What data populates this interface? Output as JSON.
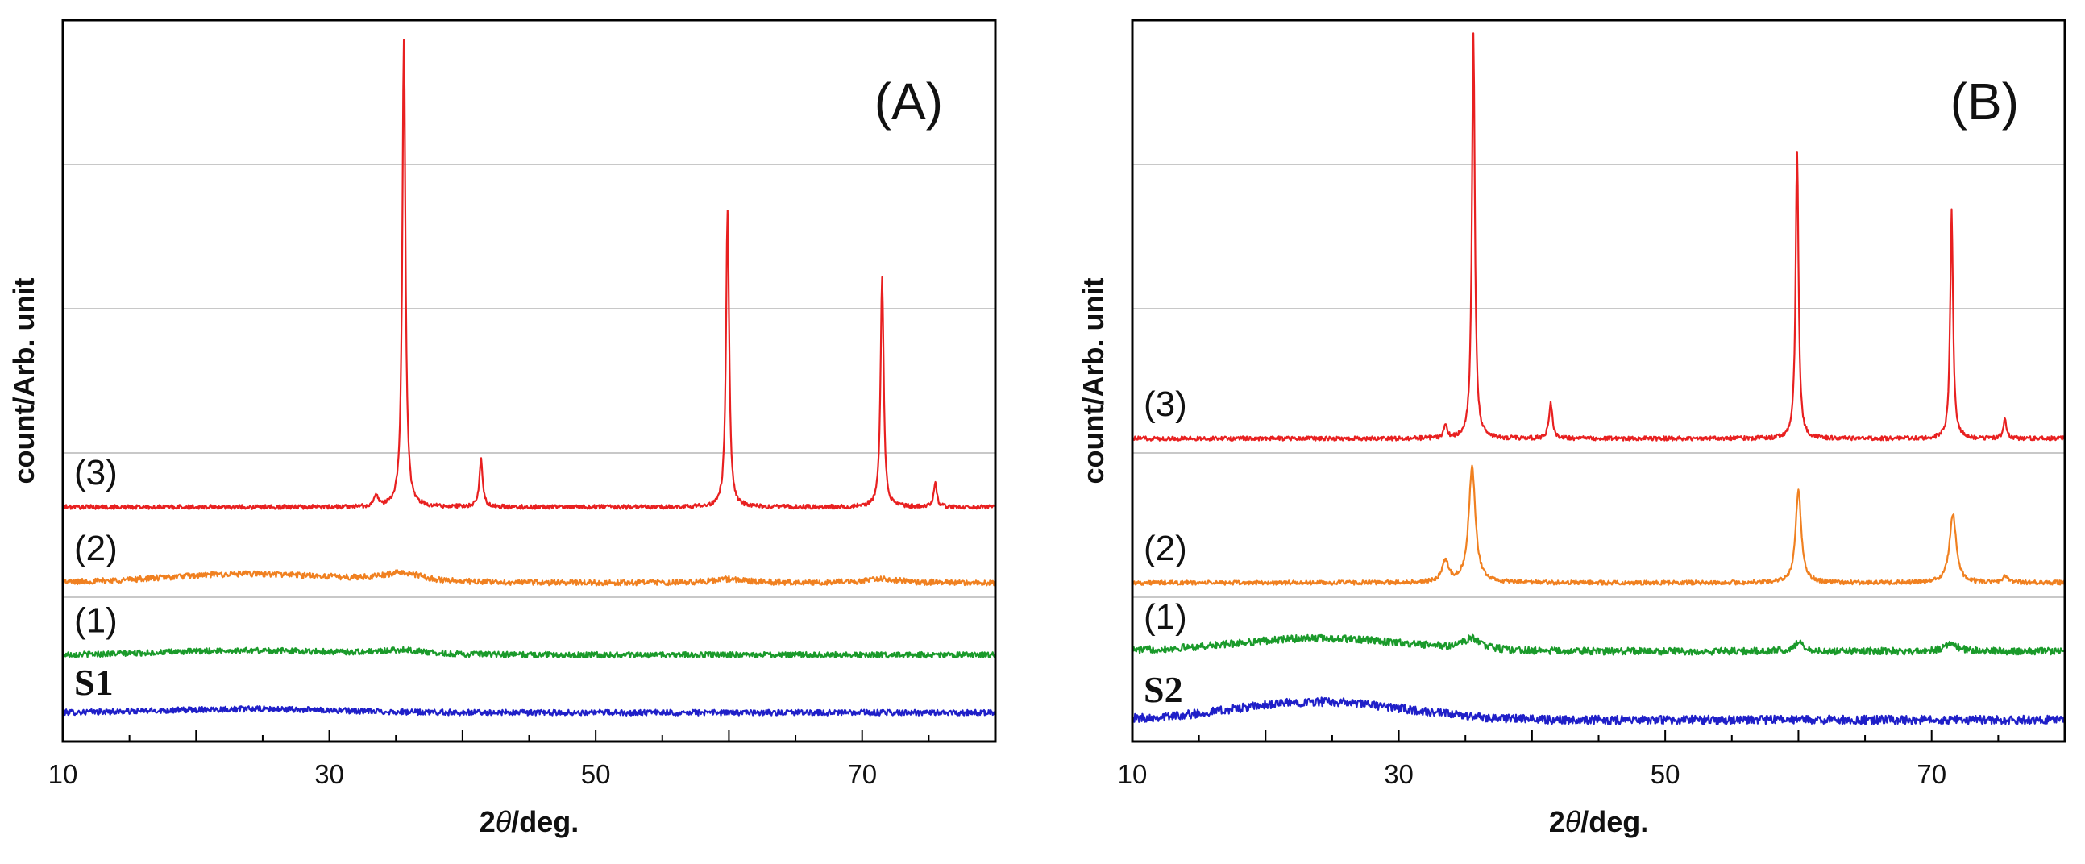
{
  "chart_data": [
    {
      "type": "line",
      "panel_label": "(A)",
      "xlabel": "2θ/deg.",
      "xlabel_prefix": "2",
      "xlabel_theta": "θ",
      "xlabel_suffix": "/deg.",
      "ylabel": "count/Arb. unit",
      "xlim": [
        10,
        80
      ],
      "ylim": [
        0,
        10
      ],
      "x_ticks": [
        10,
        30,
        50,
        70
      ],
      "x_tick_labels": [
        "10",
        "30",
        "50",
        "70"
      ],
      "grid_y": [
        2,
        4,
        6,
        8
      ],
      "series": [
        {
          "name": "S1",
          "label": "S1",
          "label_style": "sample",
          "color": "#1f1fc8",
          "baseline": 0.4,
          "noise": 0.04,
          "hump_amp": 0.05,
          "peaks": []
        },
        {
          "name": "(1)",
          "label": "(1)",
          "label_style": "curve",
          "color": "#1a9a2a",
          "baseline": 1.2,
          "noise": 0.04,
          "hump_amp": 0.06,
          "peaks": [
            [
              35.5,
              0.06,
              2.0
            ]
          ]
        },
        {
          "name": "(2)",
          "label": "(2)",
          "label_style": "curve",
          "color": "#f08020",
          "baseline": 2.2,
          "noise": 0.04,
          "hump_amp": 0.12,
          "peaks": [
            [
              35.5,
              0.12,
              1.8
            ],
            [
              60.0,
              0.05,
              1.5
            ],
            [
              71.5,
              0.05,
              1.5
            ]
          ]
        },
        {
          "name": "(3)",
          "label": "(3)",
          "label_style": "curve",
          "color": "#e82020",
          "baseline": 3.25,
          "noise": 0.03,
          "hump_amp": 0.0,
          "peaks": [
            [
              33.5,
              0.18,
              0.15
            ],
            [
              35.6,
              6.5,
              0.14
            ],
            [
              41.4,
              0.65,
              0.15
            ],
            [
              59.9,
              4.1,
              0.14
            ],
            [
              71.5,
              3.2,
              0.14
            ],
            [
              75.5,
              0.32,
              0.14
            ]
          ]
        }
      ]
    },
    {
      "type": "line",
      "panel_label": "(B)",
      "xlabel": "2θ/deg.",
      "xlabel_prefix": "2",
      "xlabel_theta": "θ",
      "xlabel_suffix": "/deg.",
      "ylabel": "count/Arb. unit",
      "xlim": [
        10,
        80
      ],
      "ylim": [
        0,
        10
      ],
      "x_ticks": [
        10,
        30,
        50,
        70
      ],
      "x_tick_labels": [
        "10",
        "30",
        "50",
        "70"
      ],
      "grid_y": [
        2,
        4,
        6,
        8
      ],
      "series": [
        {
          "name": "S2",
          "label": "S2",
          "label_style": "sample",
          "color": "#1f1fc8",
          "baseline": 0.3,
          "noise": 0.06,
          "hump_amp": 0.25,
          "peaks": []
        },
        {
          "name": "(1)",
          "label": "(1)",
          "label_style": "curve",
          "color": "#1a9a2a",
          "baseline": 1.25,
          "noise": 0.05,
          "hump_amp": 0.18,
          "peaks": [
            [
              35.5,
              0.15,
              0.8
            ],
            [
              60.0,
              0.12,
              0.5
            ],
            [
              71.5,
              0.1,
              0.6
            ]
          ]
        },
        {
          "name": "(2)",
          "label": "(2)",
          "label_style": "curve",
          "color": "#f08020",
          "baseline": 2.2,
          "noise": 0.03,
          "hump_amp": 0.0,
          "peaks": [
            [
              33.5,
              0.3,
              0.3
            ],
            [
              35.5,
              1.6,
              0.3
            ],
            [
              60.0,
              1.3,
              0.25
            ],
            [
              71.6,
              0.95,
              0.3
            ],
            [
              75.5,
              0.08,
              0.3
            ]
          ]
        },
        {
          "name": "(3)",
          "label": "(3)",
          "label_style": "curve",
          "color": "#e82020",
          "baseline": 4.2,
          "noise": 0.03,
          "hump_amp": 0.0,
          "peaks": [
            [
              33.5,
              0.2,
              0.15
            ],
            [
              35.6,
              5.6,
              0.13
            ],
            [
              41.4,
              0.5,
              0.15
            ],
            [
              59.9,
              4.0,
              0.13
            ],
            [
              71.5,
              3.15,
              0.13
            ],
            [
              75.5,
              0.28,
              0.14
            ]
          ]
        }
      ]
    }
  ]
}
